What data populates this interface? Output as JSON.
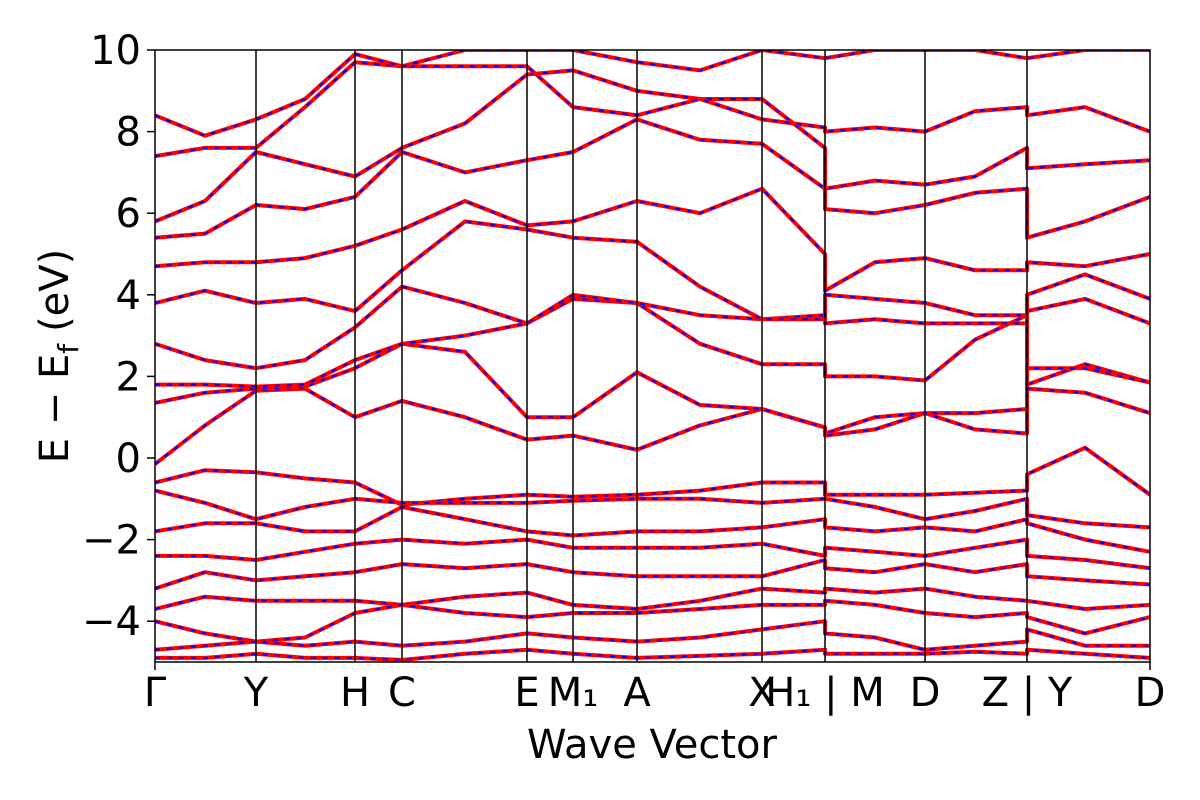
{
  "chart_data": {
    "type": "band-structure",
    "xlabel": "Wave Vector",
    "ylabel": "E − E",
    "ylabel_sub": "f",
    "ylabel_unit": "(eV)",
    "color": "#ff0000",
    "overlay_color": "#0000ff",
    "xlim": [
      0,
      9.95
    ],
    "ylim": [
      -5,
      10
    ],
    "xticks": [
      {
        "value": 0,
        "label": "Γ"
      },
      {
        "value": 1.01,
        "label": "Y"
      },
      {
        "value": 2.0,
        "label": "H"
      },
      {
        "value": 2.47,
        "label": "C"
      },
      {
        "value": 3.72,
        "label": "E"
      },
      {
        "value": 4.18,
        "label": "M₁"
      },
      {
        "value": 4.82,
        "label": "A"
      },
      {
        "value": 6.07,
        "label": "X"
      },
      {
        "value": 6.7,
        "label": "H₁ | M"
      },
      {
        "value": 7.7,
        "label": "D"
      },
      {
        "value": 8.72,
        "label": "Z | Y"
      },
      {
        "value": 9.95,
        "label": "D"
      }
    ],
    "yticks": [
      {
        "value": -4,
        "label": "−4"
      },
      {
        "value": -2,
        "label": "−2"
      },
      0,
      2,
      4,
      6,
      8,
      10
    ],
    "x": [
      0,
      0.5,
      1.01,
      1.5,
      2.0,
      2.47,
      3.1,
      3.72,
      4.18,
      4.82,
      5.45,
      6.07,
      6.7,
      6.7,
      7.2,
      7.7,
      8.2,
      8.72,
      8.72,
      9.3,
      9.95
    ],
    "series": [
      {
        "values": [
          -0.6,
          -0.3,
          -0.35,
          -0.5,
          -0.6,
          -1.15,
          -1.0,
          -0.9,
          -0.95,
          -0.9,
          -0.8,
          -0.6,
          -0.6,
          -0.9,
          -0.9,
          -0.9,
          -0.85,
          -0.8,
          -0.4,
          0.25,
          -0.9
        ]
      },
      {
        "values": [
          -0.8,
          -1.1,
          -1.5,
          -1.2,
          -1.0,
          -1.1,
          -1.1,
          -1.1,
          -1.05,
          -1.0,
          -1.0,
          -1.1,
          -1.0,
          -1.0,
          -1.2,
          -1.5,
          -1.3,
          -1.0,
          -1.4,
          -1.6,
          -1.7
        ]
      },
      {
        "values": [
          -1.8,
          -1.6,
          -1.6,
          -1.8,
          -1.8,
          -1.2,
          -1.5,
          -1.8,
          -1.9,
          -1.8,
          -1.8,
          -1.7,
          -1.5,
          -1.7,
          -1.8,
          -1.7,
          -1.8,
          -1.5,
          -1.6,
          -2.0,
          -2.3
        ]
      },
      {
        "values": [
          -2.4,
          -2.4,
          -2.5,
          -2.3,
          -2.1,
          -2.0,
          -2.1,
          -2.0,
          -2.2,
          -2.2,
          -2.2,
          -2.1,
          -2.4,
          -2.2,
          -2.3,
          -2.4,
          -2.2,
          -2.0,
          -2.4,
          -2.5,
          -2.7
        ]
      },
      {
        "values": [
          -3.2,
          -2.8,
          -3.0,
          -2.9,
          -2.8,
          -2.6,
          -2.7,
          -2.6,
          -2.8,
          -2.9,
          -2.9,
          -2.9,
          -2.5,
          -2.7,
          -2.8,
          -2.6,
          -2.8,
          -2.6,
          -2.9,
          -3.0,
          -3.1
        ]
      },
      {
        "values": [
          -3.7,
          -3.4,
          -3.5,
          -3.5,
          -3.5,
          -3.6,
          -3.4,
          -3.3,
          -3.6,
          -3.7,
          -3.5,
          -3.2,
          -3.3,
          -3.2,
          -3.3,
          -3.2,
          -3.4,
          -3.5,
          -3.5,
          -3.7,
          -3.6
        ]
      },
      {
        "values": [
          -4.0,
          -4.3,
          -4.5,
          -4.4,
          -3.8,
          -3.6,
          -3.8,
          -3.9,
          -3.8,
          -3.8,
          -3.7,
          -3.6,
          -3.6,
          -3.5,
          -3.6,
          -3.8,
          -3.9,
          -3.8,
          -3.9,
          -4.3,
          -3.9
        ]
      },
      {
        "values": [
          -4.7,
          -4.6,
          -4.5,
          -4.6,
          -4.5,
          -4.6,
          -4.5,
          -4.3,
          -4.4,
          -4.5,
          -4.4,
          -4.2,
          -4.0,
          -4.3,
          -4.4,
          -4.7,
          -4.6,
          -4.5,
          -4.2,
          -4.6,
          -4.6
        ]
      },
      {
        "values": [
          -4.9,
          -4.9,
          -4.8,
          -4.9,
          -4.9,
          -4.95,
          -4.8,
          -4.7,
          -4.8,
          -4.9,
          -4.85,
          -4.8,
          -4.7,
          -4.8,
          -4.8,
          -4.8,
          -4.75,
          -4.8,
          -4.7,
          -4.8,
          -4.9
        ]
      },
      {
        "values": [
          -0.15,
          0.8,
          1.65,
          1.7,
          1.0,
          1.4,
          1.0,
          0.45,
          0.55,
          0.2,
          0.8,
          1.2,
          0.75,
          0.55,
          0.7,
          1.1,
          1.1,
          1.2,
          1.8,
          2.3,
          1.85
        ]
      },
      {
        "values": [
          1.35,
          1.6,
          1.7,
          1.75,
          2.2,
          2.8,
          2.6,
          1.0,
          1.0,
          2.1,
          1.3,
          1.2,
          0.75,
          0.6,
          1.0,
          1.1,
          0.7,
          0.6,
          2.2,
          2.2,
          1.85
        ]
      },
      {
        "values": [
          1.8,
          1.8,
          1.75,
          1.8,
          2.4,
          2.8,
          3.0,
          3.3,
          3.9,
          3.8,
          2.8,
          2.3,
          2.3,
          2.0,
          2.0,
          1.9,
          2.9,
          3.5,
          1.7,
          1.6,
          1.1
        ]
      },
      {
        "values": [
          2.8,
          2.4,
          2.2,
          2.4,
          3.2,
          4.2,
          3.8,
          3.3,
          4.0,
          3.8,
          3.5,
          3.4,
          3.5,
          3.3,
          3.4,
          3.3,
          3.3,
          3.3,
          3.6,
          3.9,
          3.3
        ]
      },
      {
        "values": [
          3.8,
          4.1,
          3.8,
          3.9,
          3.6,
          4.6,
          5.8,
          5.6,
          5.4,
          5.3,
          4.2,
          3.4,
          3.4,
          4.0,
          3.9,
          3.8,
          3.5,
          3.5,
          4.0,
          4.5,
          3.9
        ]
      },
      {
        "values": [
          4.7,
          4.8,
          4.8,
          4.9,
          5.2,
          5.6,
          6.3,
          5.7,
          5.8,
          6.3,
          6.0,
          6.6,
          5.0,
          4.1,
          4.8,
          4.9,
          4.6,
          4.6,
          4.8,
          4.7,
          5.0
        ]
      },
      {
        "values": [
          5.4,
          5.5,
          6.2,
          6.1,
          6.4,
          7.5,
          7.0,
          7.3,
          7.5,
          8.3,
          7.8,
          7.7,
          6.6,
          6.1,
          6.0,
          6.2,
          6.5,
          6.6,
          5.4,
          5.8,
          6.4
        ]
      },
      {
        "values": [
          5.8,
          6.3,
          7.5,
          7.2,
          6.9,
          7.6,
          8.2,
          9.4,
          9.5,
          9.0,
          8.8,
          8.8,
          7.6,
          6.6,
          6.8,
          6.7,
          6.9,
          7.6,
          7.1,
          7.2,
          7.3
        ]
      },
      {
        "values": [
          7.4,
          7.6,
          7.6,
          8.6,
          9.7,
          9.6,
          9.6,
          9.6,
          8.6,
          8.4,
          8.8,
          8.3,
          8.1,
          8.0,
          8.1,
          8.0,
          8.5,
          8.6,
          8.4,
          8.6,
          8.0
        ]
      },
      {
        "values": [
          8.4,
          7.9,
          8.3,
          8.8,
          9.9,
          9.6,
          10,
          10,
          10,
          9.7,
          9.5,
          10,
          9.8,
          9.8,
          10,
          10,
          10,
          9.8,
          9.8,
          10,
          10
        ]
      }
    ]
  }
}
